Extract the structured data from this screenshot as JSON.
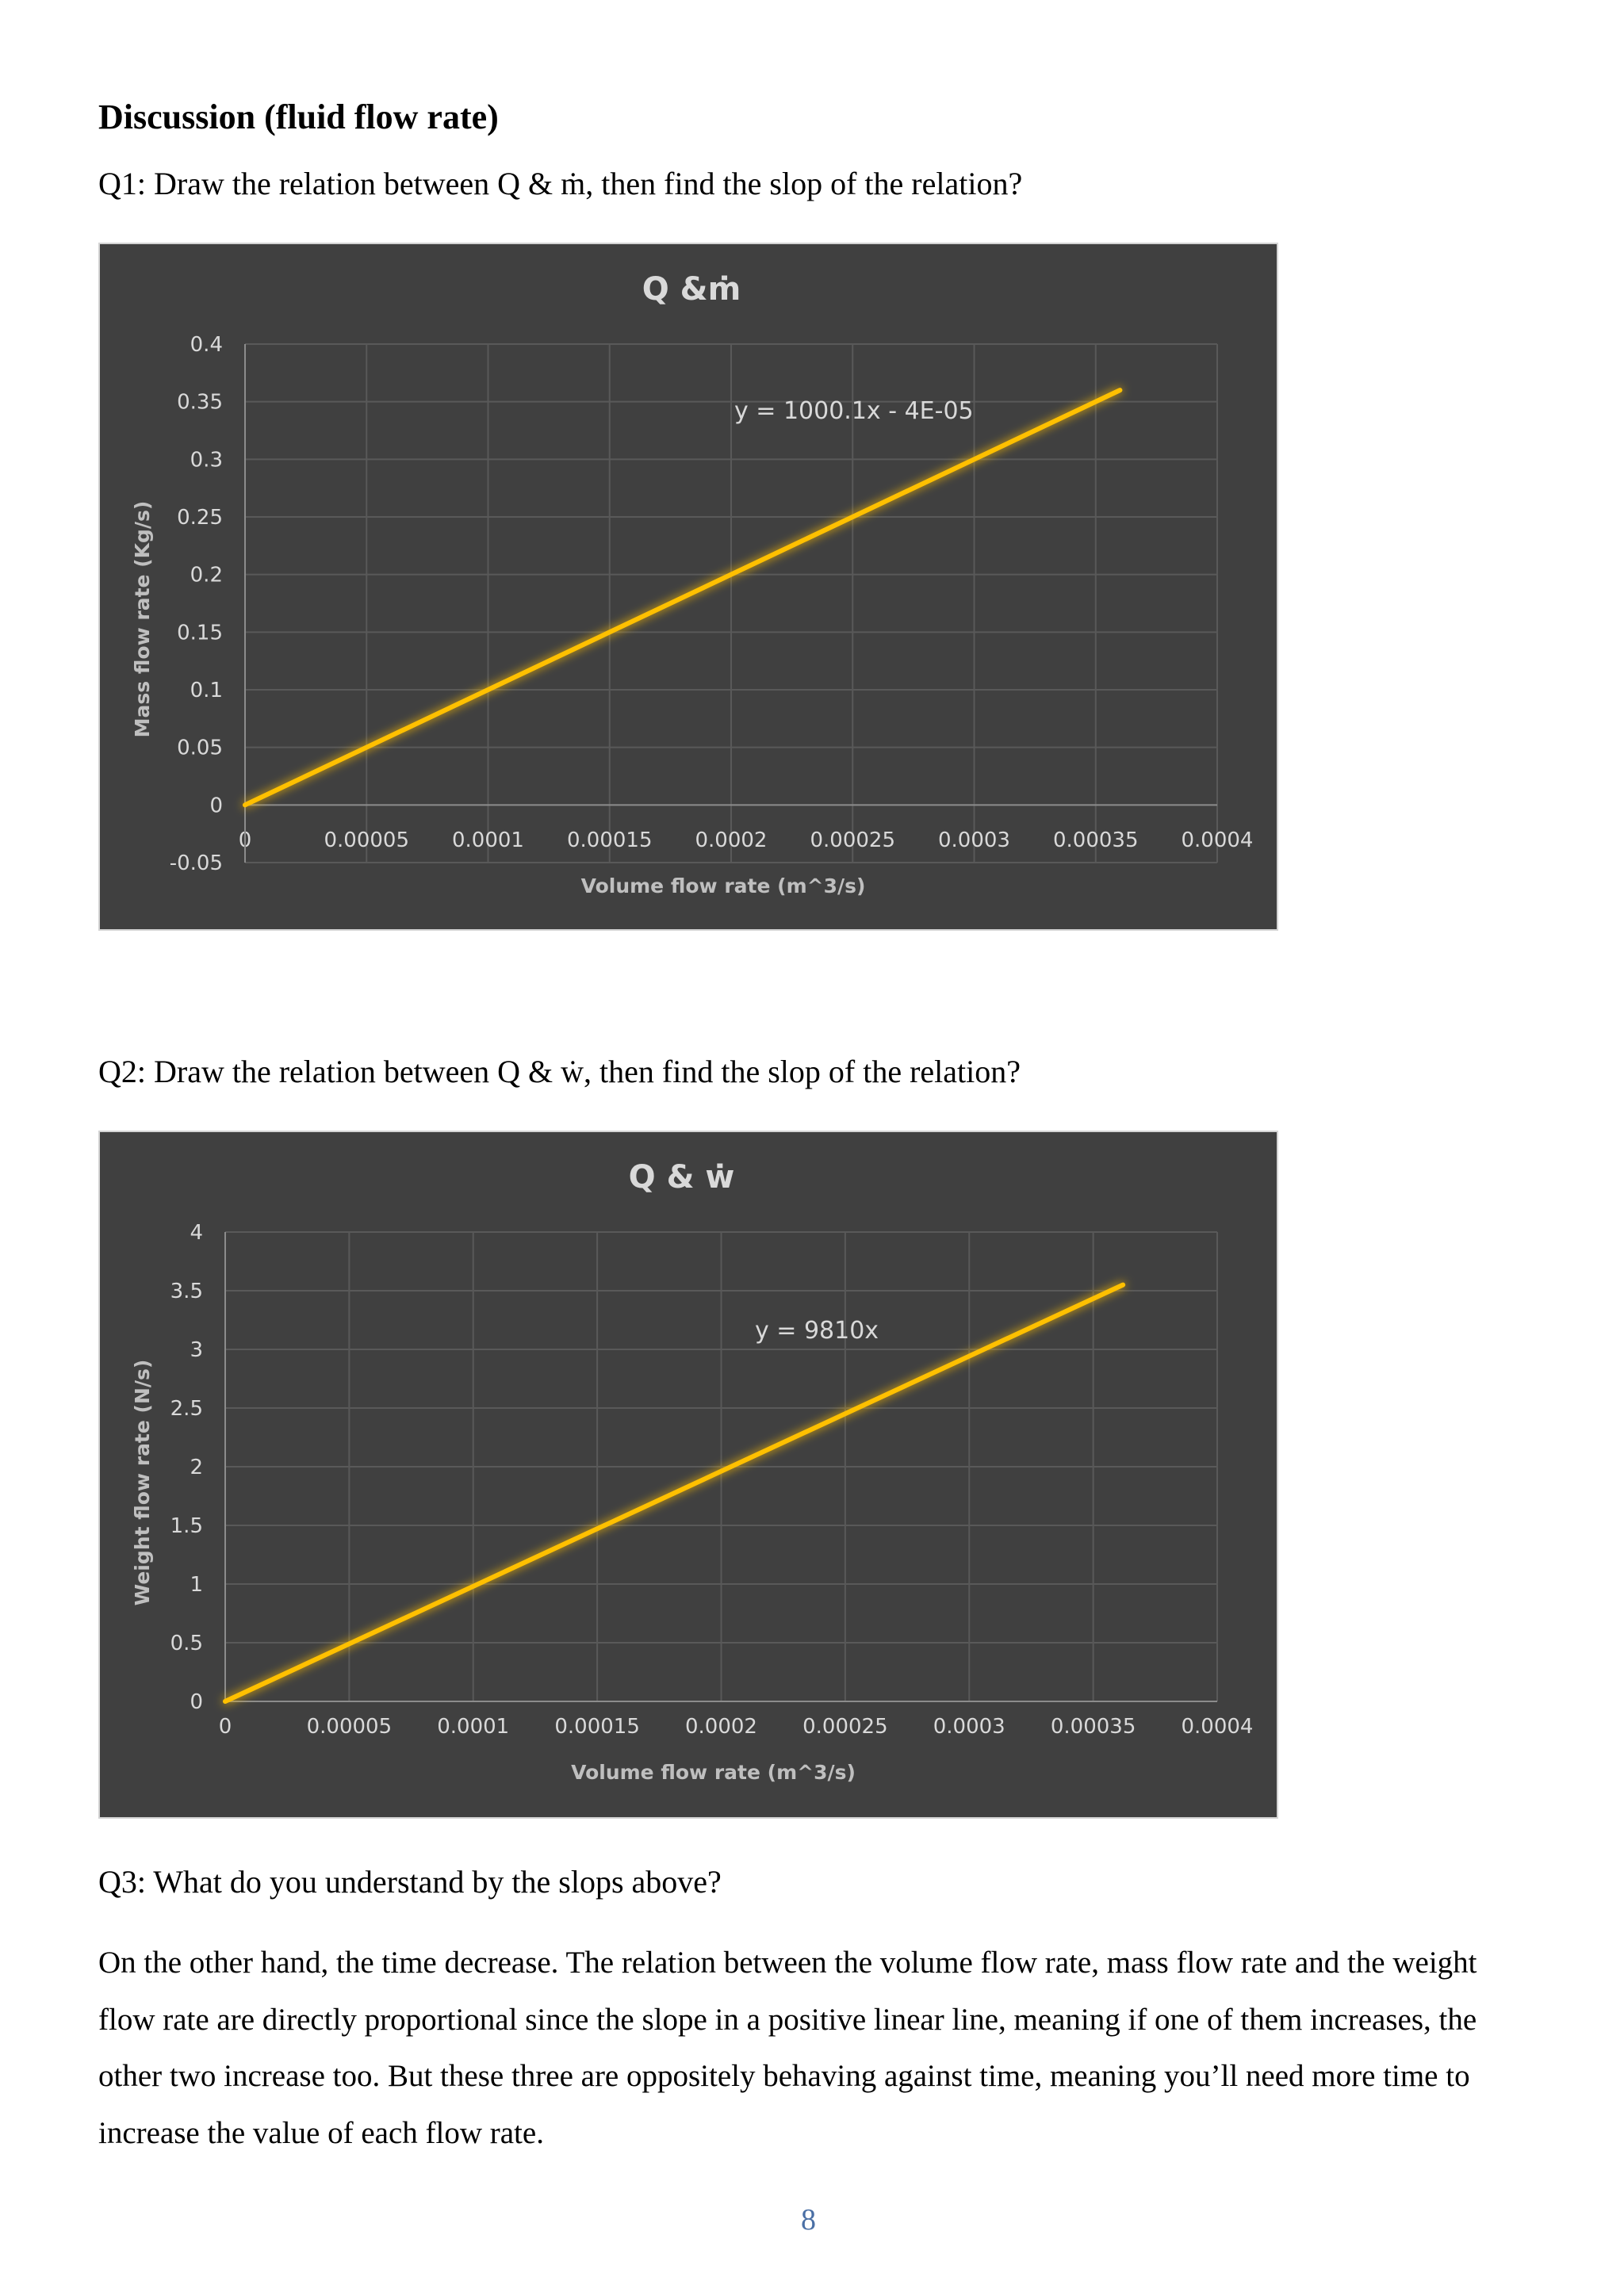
{
  "heading": "Discussion (fluid flow rate)",
  "q1": "Q1: Draw the relation between Q & ṁ, then find the slop of the relation?",
  "q2": "Q2: Draw the relation between Q & ẇ, then find the slop of the relation?",
  "q3": "Q3: What do you understand by the slops above?",
  "answer": "On the other hand, the time decrease. The relation between the volume flow rate, mass flow rate and the weight flow rate are directly proportional since the slope in a positive linear line, meaning if one of them increases, the other two increase too. But these three are oppositely behaving against time, meaning you’ll need more time to increase the value of each flow rate.",
  "page_number": "8",
  "colors": {
    "chart_background": "#404040",
    "series": "#ffc000",
    "gridline": "#595959",
    "text": "#d9d9d9"
  },
  "chart_data": [
    {
      "type": "line",
      "title": "Q &ṁ",
      "xlabel": "Volume flow rate (m^3/s)",
      "ylabel": "Mass flow rate (Kg/s)",
      "xlim": [
        0,
        0.0004
      ],
      "ylim": [
        -0.05,
        0.4
      ],
      "x_ticks": [
        "0",
        "0.00005",
        "0.0001",
        "0.00015",
        "0.0002",
        "0.00025",
        "0.0003",
        "0.00035",
        "0.0004"
      ],
      "y_ticks": [
        "-0.05",
        "0",
        "0.05",
        "0.1",
        "0.15",
        "0.2",
        "0.25",
        "0.3",
        "0.35",
        "0.4"
      ],
      "grid": true,
      "trendline_label": "y = 1000.1x - 4E-05",
      "series": [
        {
          "x": [
            0,
            0.00036
          ],
          "y": [
            0,
            0.36
          ]
        }
      ]
    },
    {
      "type": "line",
      "title": "Q & ẇ",
      "xlabel": "Volume flow rate (m^3/s)",
      "ylabel": "Weight flow rate (N/s)",
      "xlim": [
        0,
        0.0004
      ],
      "ylim": [
        0,
        4
      ],
      "x_ticks": [
        "0",
        "0.00005",
        "0.0001",
        "0.00015",
        "0.0002",
        "0.00025",
        "0.0003",
        "0.00035",
        "0.0004"
      ],
      "y_ticks": [
        "0",
        "0.5",
        "1",
        "1.5",
        "2",
        "2.5",
        "3",
        "3.5",
        "4"
      ],
      "grid": true,
      "trendline_label": "y = 9810x",
      "series": [
        {
          "x": [
            0,
            0.000362
          ],
          "y": [
            0,
            3.55
          ]
        }
      ]
    }
  ]
}
